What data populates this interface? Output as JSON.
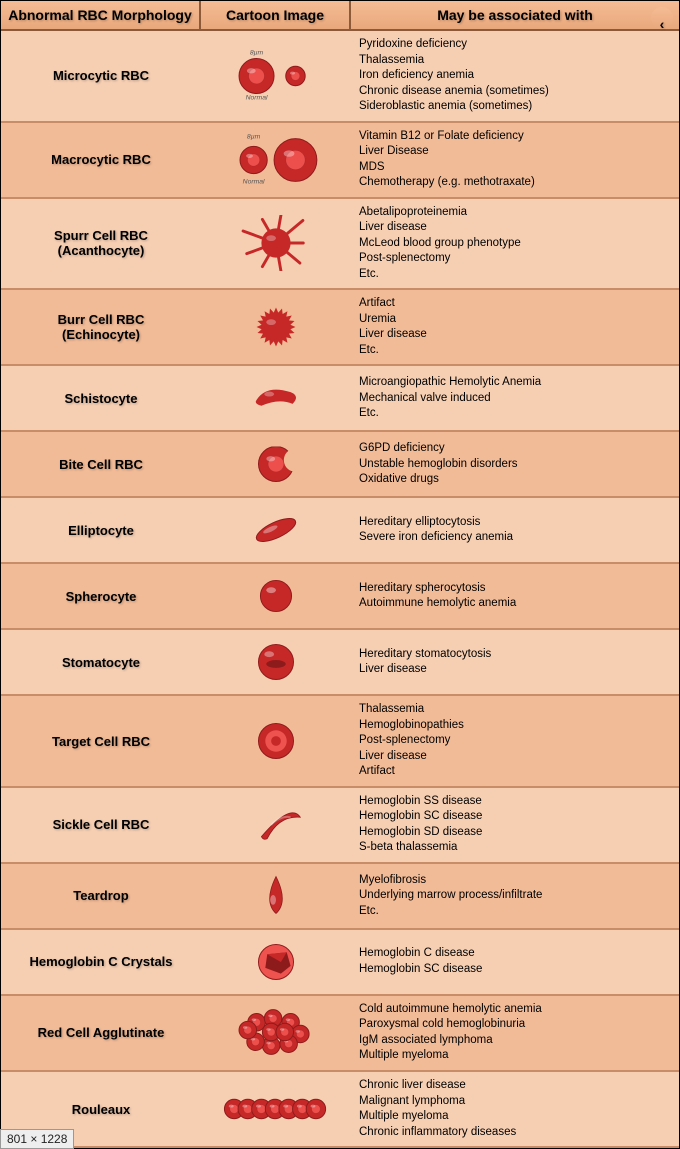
{
  "header": {
    "col1": "Abnormal RBC Morphology",
    "col2": "Cartoon Image",
    "col3": "May be associated with"
  },
  "colors": {
    "row_light": "#f6cfb3",
    "row_dark": "#f2bb97",
    "border": "#c88c68",
    "rbc_fill": "#c62828",
    "rbc_dark": "#8e1b1b",
    "rbc_hi": "#ef5350"
  },
  "rows": [
    {
      "name": "Microcytic RBC",
      "icon": "microcytic",
      "assoc": [
        "Pyridoxine deficiency",
        "Thalassemia",
        "Iron deficiency anemia",
        "Chronic disease anemia (sometimes)",
        "Sideroblastic anemia (sometimes)"
      ]
    },
    {
      "name": "Macrocytic RBC",
      "icon": "macrocytic",
      "assoc": [
        "Vitamin B12 or Folate deficiency",
        "Liver Disease",
        "MDS",
        "Chemotherapy (e.g. methotraxate)"
      ]
    },
    {
      "name": "Spurr Cell RBC\n(Acanthocyte)",
      "icon": "acanthocyte",
      "assoc": [
        "Abetalipoproteinemia",
        "Liver disease",
        "McLeod  blood group phenotype",
        "Post-splenectomy",
        "Etc."
      ]
    },
    {
      "name": "Burr Cell RBC\n(Echinocyte)",
      "icon": "echinocyte",
      "assoc": [
        "Artifact",
        "Uremia",
        "Liver disease",
        "Etc."
      ]
    },
    {
      "name": "Schistocyte",
      "icon": "schistocyte",
      "assoc": [
        "Microangiopathic Hemolytic Anemia",
        "Mechanical valve induced",
        "Etc."
      ]
    },
    {
      "name": "Bite Cell RBC",
      "icon": "bitecell",
      "assoc": [
        "G6PD deficiency",
        "Unstable hemoglobin disorders",
        "Oxidative drugs"
      ]
    },
    {
      "name": "Elliptocyte",
      "icon": "elliptocyte",
      "assoc": [
        "Hereditary elliptocytosis",
        "Severe iron deficiency anemia"
      ]
    },
    {
      "name": "Spherocyte",
      "icon": "spherocyte",
      "assoc": [
        "Hereditary spherocytosis",
        "Autoimmune hemolytic anemia"
      ]
    },
    {
      "name": "Stomatocyte",
      "icon": "stomatocyte",
      "assoc": [
        "Hereditary stomatocytosis",
        "Liver disease"
      ]
    },
    {
      "name": "Target Cell RBC",
      "icon": "target",
      "assoc": [
        "Thalassemia",
        "Hemoglobinopathies",
        "Post-splenectomy",
        "Liver disease",
        "Artifact"
      ]
    },
    {
      "name": "Sickle Cell RBC",
      "icon": "sickle",
      "assoc": [
        "Hemoglobin SS disease",
        "Hemoglobin SC disease",
        "Hemoglobin SD disease",
        "S-beta thalassemia"
      ]
    },
    {
      "name": "Teardrop",
      "icon": "teardrop",
      "assoc": [
        "Myelofibrosis",
        "Underlying marrow process/infiltrate",
        "Etc."
      ]
    },
    {
      "name": "Hemoglobin C Crystals",
      "icon": "crystal",
      "assoc": [
        "Hemoglobin C disease",
        "Hemoglobin SC disease"
      ]
    },
    {
      "name": "Red Cell Agglutinate",
      "icon": "agglutinate",
      "assoc": [
        "Cold autoimmune hemolytic anemia",
        "Paroxysmal cold hemoglobinuria",
        "IgM associated lymphoma",
        "Multiple myeloma"
      ]
    },
    {
      "name": "Rouleaux",
      "icon": "rouleaux",
      "assoc": [
        "Chronic liver disease",
        "Malignant lymphoma",
        "Multiple myeloma",
        "Chronic inflammatory diseases"
      ]
    }
  ],
  "badge": "801 × 1228",
  "imglabels": {
    "size": "8µm",
    "normal": "Normal"
  }
}
